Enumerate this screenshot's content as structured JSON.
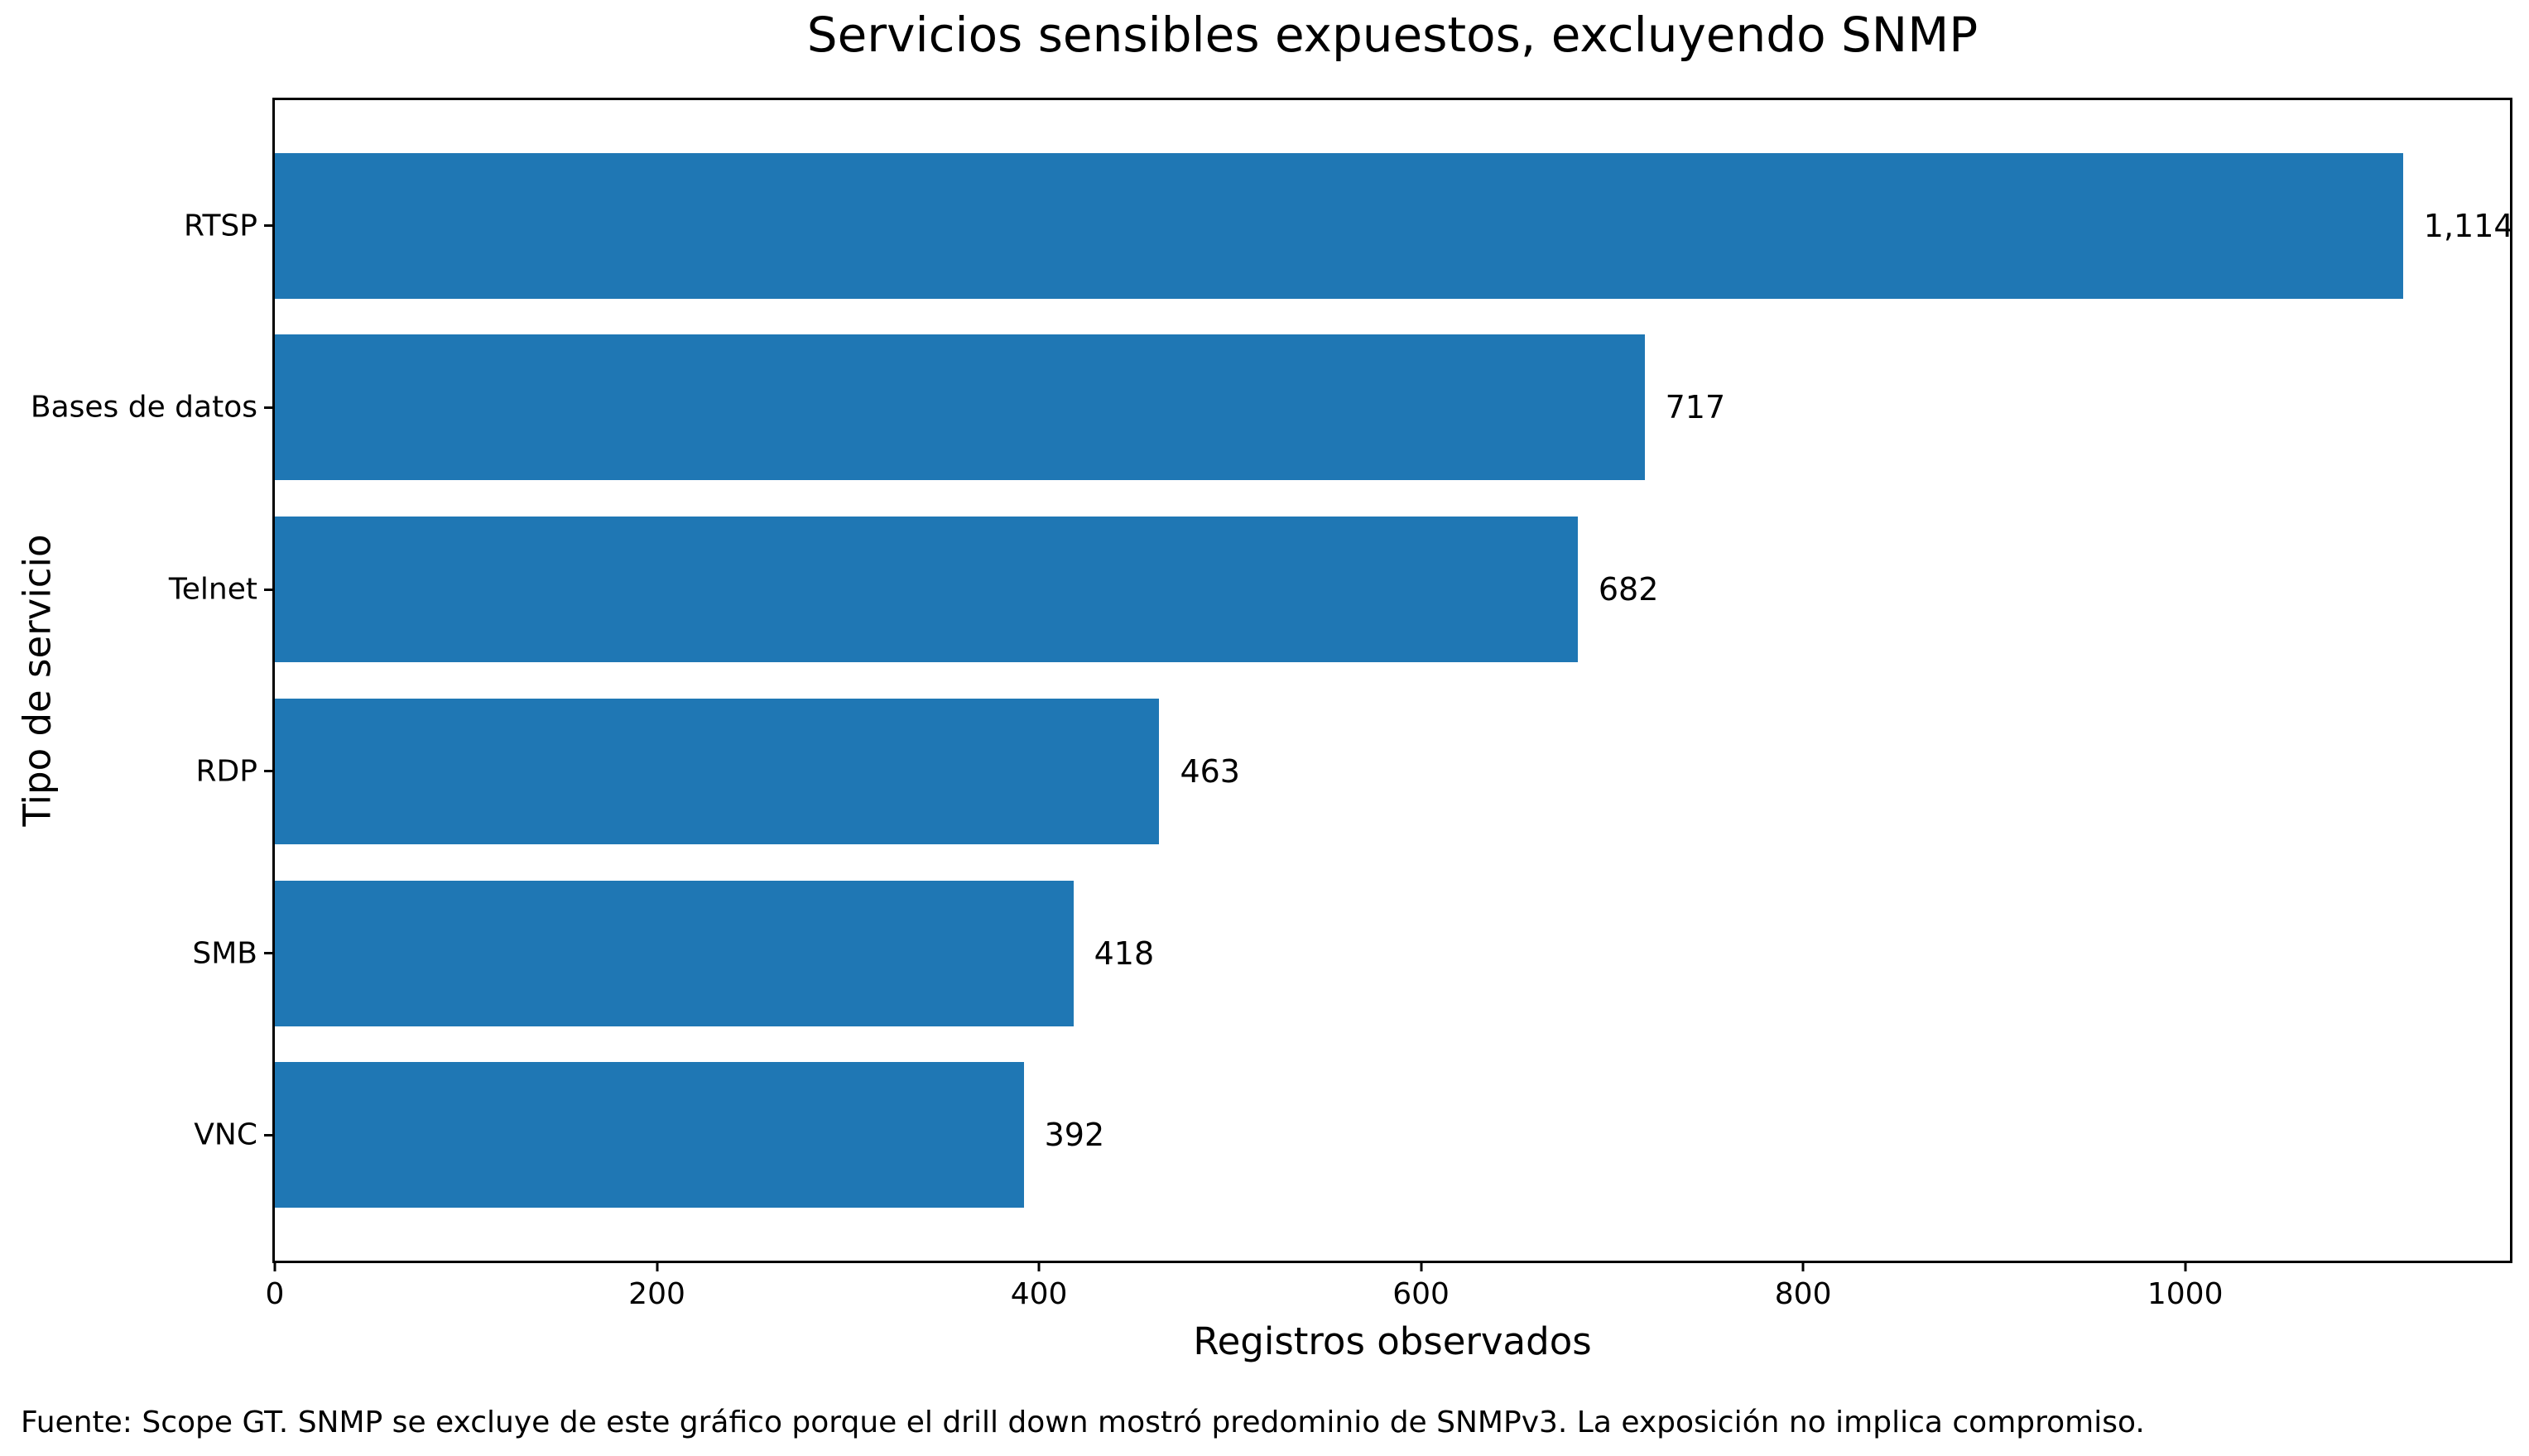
{
  "chart_data": {
    "type": "bar",
    "orientation": "horizontal",
    "title": "Servicios sensibles expuestos, excluyendo SNMP",
    "xlabel": "Registros observados",
    "ylabel": "Tipo de servicio",
    "categories": [
      "RTSP",
      "Bases de datos",
      "Telnet",
      "RDP",
      "SMB",
      "VNC"
    ],
    "values": [
      1114,
      717,
      682,
      463,
      418,
      392
    ],
    "value_labels": [
      "1,114",
      "717",
      "682",
      "463",
      "418",
      "392"
    ],
    "xticks": [
      0,
      200,
      400,
      600,
      800,
      1000
    ],
    "xlim": [
      0,
      1170
    ],
    "grid": false,
    "legend": null,
    "bar_color": "#1f77b4",
    "axis_color": "#000000",
    "text_color": "#000000",
    "source_note": "Fuente: Scope GT. SNMP se excluye de este gráfico porque el drill down mostró predominio de SNMPv3. La exposición no implica compromiso."
  }
}
